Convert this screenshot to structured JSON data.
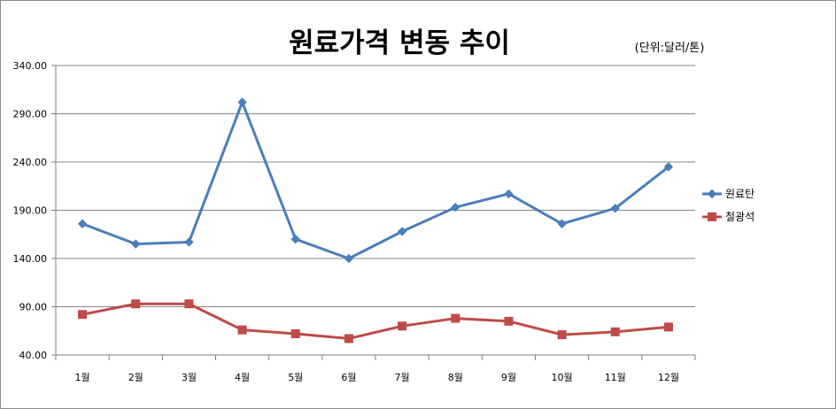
{
  "chart_data": {
    "type": "line",
    "title": "원료가격 변동 추이",
    "unit_label": "(단위:달러/톤)",
    "categories": [
      "1월",
      "2월",
      "3월",
      "4월",
      "5월",
      "6월",
      "7월",
      "8월",
      "9월",
      "10월",
      "11월",
      "12월"
    ],
    "yticks": [
      "40.00",
      "90.00",
      "140.00",
      "190.00",
      "240.00",
      "290.00",
      "340.00"
    ],
    "ylim": [
      40,
      340
    ],
    "grid": true,
    "legend_position": "right",
    "series": [
      {
        "name": "원료탄",
        "color": "#4a7ebb",
        "marker": "diamond",
        "values": [
          176,
          155,
          157,
          302,
          160,
          140,
          168,
          193,
          207,
          176,
          192,
          235
        ]
      },
      {
        "name": "철광석",
        "color": "#be4b48",
        "marker": "square",
        "values": [
          82,
          93,
          93,
          66,
          62,
          57,
          70,
          78,
          75,
          61,
          64,
          69
        ]
      }
    ]
  }
}
